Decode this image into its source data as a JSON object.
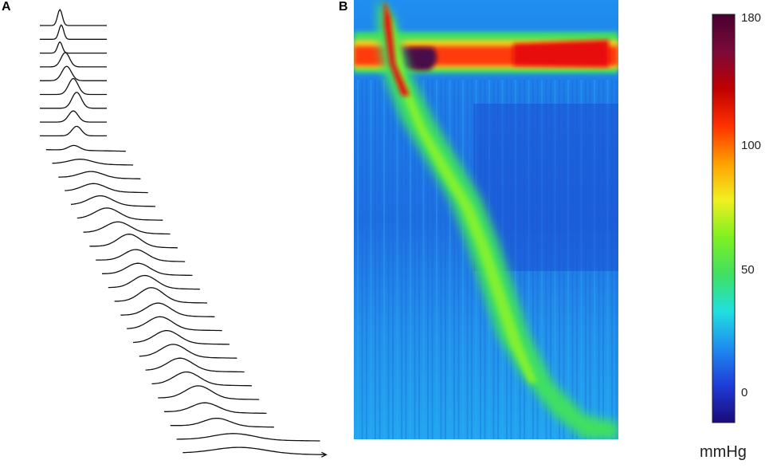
{
  "panels": {
    "a_label": "A",
    "b_label": "B"
  },
  "chart_data": [
    {
      "type": "line",
      "panel": "A",
      "description_visible": "",
      "series_count": 32,
      "traces": [
        {
          "peak_pos": 0.3,
          "amp": 1.0,
          "width": 0.05
        },
        {
          "peak_pos": 0.32,
          "amp": 0.9,
          "width": 0.05
        },
        {
          "peak_pos": 0.3,
          "amp": 0.7,
          "width": 0.05
        },
        {
          "peak_pos": 0.38,
          "amp": 0.9,
          "width": 0.09
        },
        {
          "peak_pos": 0.4,
          "amp": 0.9,
          "width": 0.1
        },
        {
          "peak_pos": 0.5,
          "amp": 1.0,
          "width": 0.1
        },
        {
          "peak_pos": 0.55,
          "amp": 1.0,
          "width": 0.1
        },
        {
          "peak_pos": 0.5,
          "amp": 0.7,
          "width": 0.1
        },
        {
          "peak_pos": 0.55,
          "amp": 0.6,
          "width": 0.1
        },
        {
          "peak_pos": 0.35,
          "amp": 0.3,
          "width": 0.1
        },
        {
          "peak_pos": 0.35,
          "amp": 0.3,
          "width": 0.2
        },
        {
          "peak_pos": 0.4,
          "amp": 0.4,
          "width": 0.2
        },
        {
          "peak_pos": 0.35,
          "amp": 0.5,
          "width": 0.2
        },
        {
          "peak_pos": 0.35,
          "amp": 0.6,
          "width": 0.2
        },
        {
          "peak_pos": 0.35,
          "amp": 0.7,
          "width": 0.2
        },
        {
          "peak_pos": 0.4,
          "amp": 0.7,
          "width": 0.2
        },
        {
          "peak_pos": 0.45,
          "amp": 0.8,
          "width": 0.18
        },
        {
          "peak_pos": 0.45,
          "amp": 0.7,
          "width": 0.18
        },
        {
          "peak_pos": 0.4,
          "amp": 0.7,
          "width": 0.18
        },
        {
          "peak_pos": 0.4,
          "amp": 0.8,
          "width": 0.18
        },
        {
          "peak_pos": 0.4,
          "amp": 0.9,
          "width": 0.18
        },
        {
          "peak_pos": 0.4,
          "amp": 0.8,
          "width": 0.18
        },
        {
          "peak_pos": 0.35,
          "amp": 0.8,
          "width": 0.18
        },
        {
          "peak_pos": 0.35,
          "amp": 0.8,
          "width": 0.18
        },
        {
          "peak_pos": 0.35,
          "amp": 0.8,
          "width": 0.18
        },
        {
          "peak_pos": 0.35,
          "amp": 0.8,
          "width": 0.18
        },
        {
          "peak_pos": 0.35,
          "amp": 0.8,
          "width": 0.18
        },
        {
          "peak_pos": 0.4,
          "amp": 0.8,
          "width": 0.18
        },
        {
          "peak_pos": 0.4,
          "amp": 0.6,
          "width": 0.18
        },
        {
          "peak_pos": 0.45,
          "amp": 0.5,
          "width": 0.18
        },
        {
          "peak_pos": 0.4,
          "amp": 0.4,
          "width": 0.2
        },
        {
          "peak_pos": 0.4,
          "amp": 0.4,
          "width": 0.25
        }
      ]
    },
    {
      "type": "heatmap",
      "panel": "B",
      "colorbar": {
        "min": -10,
        "max": 180,
        "ticks": [
          180,
          100,
          50,
          0
        ],
        "tick_labels": [
          "180",
          "100",
          "50",
          "0"
        ],
        "unit": "mmHg",
        "colors": [
          "#1a0a7a",
          "#1e3cd8",
          "#1e8cf0",
          "#20e0e0",
          "#40e060",
          "#80f020",
          "#f0f020",
          "#ffa000",
          "#ff3000",
          "#c00000",
          "#7a0a3a",
          "#4a0030"
        ]
      },
      "upper_sphincter_band": {
        "pressure_mmHg": 120,
        "peak_mmHg": 180
      },
      "peristaltic_wave": {
        "pressure_mmHg": 45
      },
      "baseline_mmHg": 5
    }
  ]
}
